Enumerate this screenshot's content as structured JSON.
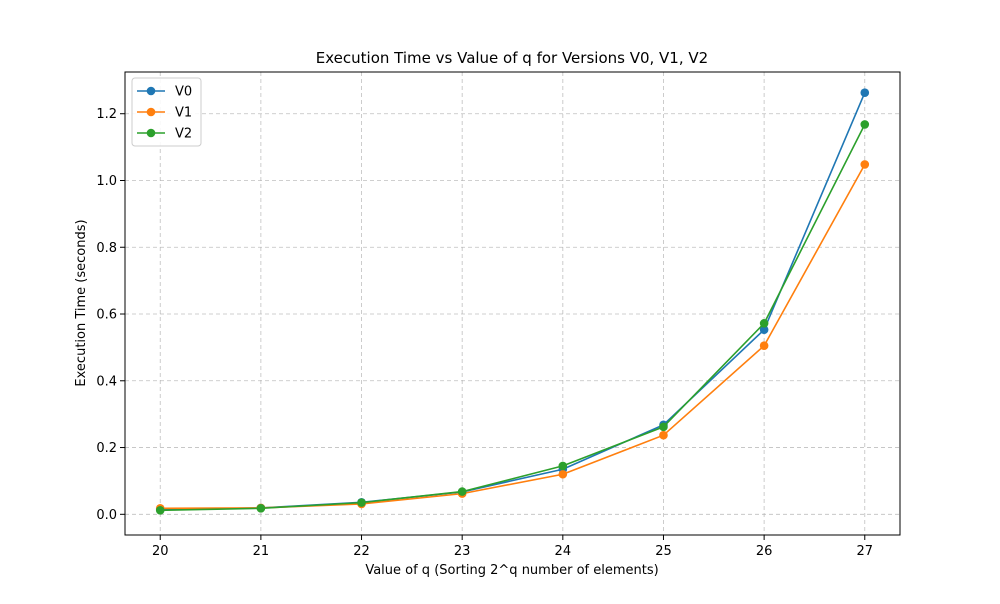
{
  "chart_data": {
    "type": "line",
    "title": "Execution Time vs Value of q for Versions V0, V1, V2",
    "xlabel": "Value of q (Sorting 2^q number of elements)",
    "ylabel": "Execution Time (seconds)",
    "x": [
      20,
      21,
      22,
      23,
      24,
      25,
      26,
      27
    ],
    "xticks": [
      "20",
      "21",
      "22",
      "23",
      "24",
      "25",
      "26",
      "27"
    ],
    "yticks": [
      "0.0",
      "0.2",
      "0.4",
      "0.6",
      "0.8",
      "1.0",
      "1.2"
    ],
    "xlim": [
      19.65,
      27.35
    ],
    "ylim": [
      -0.062,
      1.325
    ],
    "grid": true,
    "legend_position": "upper-left",
    "series": [
      {
        "name": "V0",
        "color": "#1f77b4",
        "marker": "circle",
        "values": [
          0.015,
          0.019,
          0.036,
          0.067,
          0.135,
          0.268,
          0.553,
          1.263
        ]
      },
      {
        "name": "V1",
        "color": "#ff7f0e",
        "marker": "circle",
        "values": [
          0.018,
          0.019,
          0.031,
          0.062,
          0.12,
          0.237,
          0.505,
          1.048
        ]
      },
      {
        "name": "V2",
        "color": "#2ca02c",
        "marker": "circle",
        "values": [
          0.012,
          0.018,
          0.035,
          0.068,
          0.145,
          0.262,
          0.572,
          1.168
        ]
      }
    ]
  }
}
